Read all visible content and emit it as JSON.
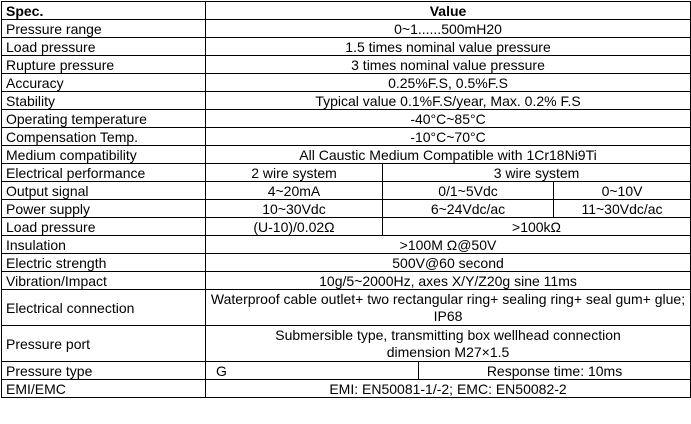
{
  "header": {
    "spec": "Spec.",
    "value": "Value"
  },
  "rows": {
    "pressure_range": {
      "label": "Pressure range",
      "value": "0~1......500mH20"
    },
    "load_pressure": {
      "label": "Load pressure",
      "value": "1.5 times nominal value pressure"
    },
    "rupture_pressure": {
      "label": "Rupture pressure",
      "value": "3 times nominal value pressure"
    },
    "accuracy": {
      "label": "Accuracy",
      "value": "0.25%F.S, 0.5%F.S"
    },
    "stability": {
      "label": "Stability",
      "value": "Typical value 0.1%F.S/year, Max. 0.2% F.S"
    },
    "operating_temperature": {
      "label": "Operating temperature",
      "value": "-40°C~85°C"
    },
    "compensation_temp": {
      "label": "Compensation Temp.",
      "value": "-10°C~70°C"
    },
    "medium_compatibility": {
      "label": "Medium compatibility",
      "value": "All Caustic Medium Compatible with 1Cr18Ni9Ti"
    },
    "electrical_performance": {
      "label": "Electrical performance",
      "two_wire": "2 wire system",
      "three_wire": "3 wire system"
    },
    "output_signal": {
      "label": "Output signal",
      "values": [
        "4~20mA",
        "0/1~5Vdc",
        "0~10V"
      ]
    },
    "power_supply": {
      "label": "Power supply",
      "values": [
        "10~30Vdc",
        "6~24Vdc/ac",
        "11~30Vdc/ac"
      ]
    },
    "load_pressure_2": {
      "label": "Load pressure",
      "values": [
        "(U-10)/0.02Ω",
        ">100kΩ"
      ]
    },
    "insulation": {
      "label": "Insulation",
      "value": ">100M Ω@50V"
    },
    "electric_strength": {
      "label": "Electric strength",
      "value": "500V@60 second"
    },
    "vibration_impact": {
      "label": "Vibration/Impact",
      "value": "10g/5~2000Hz, axes X/Y/Z20g sine 11ms"
    },
    "electrical_connection": {
      "label": "Electrical connection",
      "value": "Waterproof cable outlet+ two rectangular ring+ sealing ring+ seal gum+ glue; IP68"
    },
    "pressure_port": {
      "label": "Pressure port",
      "value": "Submersible type, transmitting box wellhead connection dimension M27×1.5"
    },
    "pressure_type": {
      "label": "Pressure type",
      "value": "G",
      "response": "Response time: 10ms"
    },
    "emi_emc": {
      "label": "EMI/EMC",
      "value": "EMI: EN50081-1/-2; EMC: EN50082-2"
    }
  }
}
